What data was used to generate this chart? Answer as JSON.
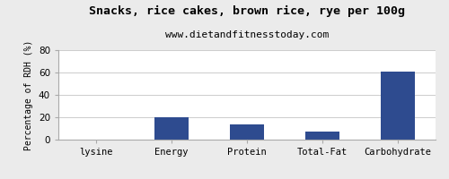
{
  "title": "Snacks, rice cakes, brown rice, rye per 100g",
  "subtitle": "www.dietandfitnesstoday.com",
  "categories": [
    "lysine",
    "Energy",
    "Protein",
    "Total-Fat",
    "Carbohydrate"
  ],
  "values": [
    0,
    20,
    14,
    7,
    61
  ],
  "bar_color": "#2e4b8f",
  "ylabel": "Percentage of RDH (%)",
  "ylim": [
    0,
    80
  ],
  "yticks": [
    0,
    20,
    40,
    60,
    80
  ],
  "background_color": "#ebebeb",
  "plot_bg_color": "#ffffff",
  "title_fontsize": 9.5,
  "subtitle_fontsize": 8,
  "ylabel_fontsize": 7,
  "tick_fontsize": 7.5,
  "bar_width": 0.45
}
